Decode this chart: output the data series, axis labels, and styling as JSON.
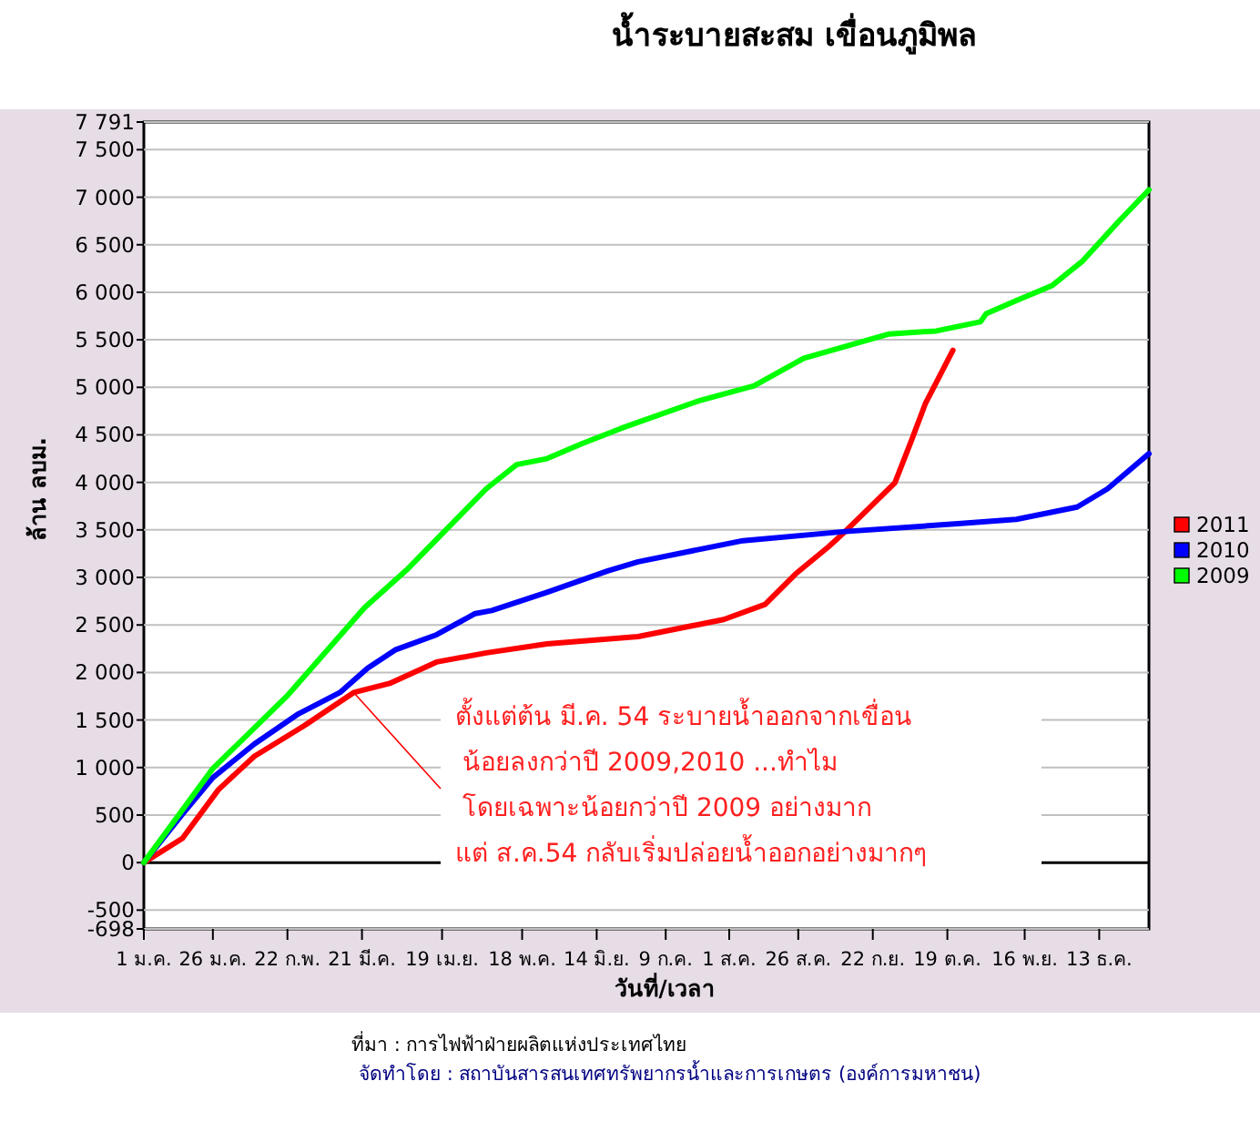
{
  "chart_data": {
    "type": "line",
    "title": "น้ำระบายสะสม เขื่อนภูมิพล",
    "xlabel": "วันที่/เวลา",
    "ylabel": "ล้าน ลบม.",
    "xlim": [
      "--01-01",
      "--12-31"
    ],
    "xticks": [
      {
        "value": "--01-01",
        "label": "1 ม.ค."
      },
      {
        "value": "--01-26",
        "label": "26 ม.ค."
      },
      {
        "value": "--02-22",
        "label": "22 ก.พ."
      },
      {
        "value": "--03-21",
        "label": "21 มี.ค."
      },
      {
        "value": "--04-19",
        "label": "19 เม.ย."
      },
      {
        "value": "--05-18",
        "label": "18 พ.ค."
      },
      {
        "value": "--06-14",
        "label": "14 มิ.ย."
      },
      {
        "value": "--07-09",
        "label": "9 ก.ค."
      },
      {
        "value": "--08-01",
        "label": "1 ส.ค."
      },
      {
        "value": "--08-26",
        "label": "26 ส.ค."
      },
      {
        "value": "--09-22",
        "label": "22 ก.ย."
      },
      {
        "value": "--10-19",
        "label": "19 ต.ค."
      },
      {
        "value": "--11-16",
        "label": "16 พ.ย."
      },
      {
        "value": "--12-13",
        "label": "13 ธ.ค."
      }
    ],
    "ylim": [
      -698,
      7791
    ],
    "yticks": [
      {
        "value": -698,
        "label": "-698"
      },
      -500,
      0,
      500,
      {
        "value": 1000,
        "label": "1 000"
      },
      {
        "value": 1500,
        "label": "1 500"
      },
      {
        "value": 2000,
        "label": "2 000"
      },
      {
        "value": 2500,
        "label": "2 500"
      },
      {
        "value": 3000,
        "label": "3 000"
      },
      {
        "value": 3500,
        "label": "3 500"
      },
      {
        "value": 4000,
        "label": "4 000"
      },
      {
        "value": 4500,
        "label": "4 500"
      },
      {
        "value": 5000,
        "label": "5 000"
      },
      {
        "value": 5500,
        "label": "5 500"
      },
      {
        "value": 6000,
        "label": "6 000"
      },
      {
        "value": 6500,
        "label": "6 500"
      },
      {
        "value": 7000,
        "label": "7 000"
      },
      {
        "value": 7500,
        "label": "7 500"
      },
      {
        "value": 7791,
        "label": "7 791"
      }
    ],
    "grid": "y",
    "legend": "right",
    "marker": "none",
    "line_style": "solid",
    "ref_lines": [
      {
        "axis": "y",
        "value": 0,
        "color": "#000000"
      }
    ],
    "series": [
      {
        "name": "2011",
        "color": "#ff0000",
        "x": [
          "--01-01",
          "--01-15",
          "--01-28",
          "--02-10",
          "--02-28",
          "--03-18",
          "--03-31",
          "--04-17",
          "--05-05",
          "--05-27",
          "--06-29",
          "--07-30",
          "--08-14",
          "--08-25",
          "--09-06",
          "--09-12",
          "--09-30",
          "--10-06",
          "--10-11",
          "--10-21"
        ],
        "values": [
          0,
          255,
          767,
          1118,
          1438,
          1789,
          1885,
          2110,
          2206,
          2301,
          2378,
          2557,
          2716,
          3036,
          3324,
          3483,
          3995,
          4442,
          4826,
          5389
        ]
      },
      {
        "name": "2010",
        "color": "#0000ff",
        "x": [
          "--01-01",
          "--01-15",
          "--01-26",
          "--02-10",
          "--02-26",
          "--03-13",
          "--03-23",
          "--04-02",
          "--04-17",
          "--05-01",
          "--05-07",
          "--05-27",
          "--06-18",
          "--06-29",
          "--08-06",
          "--09-12",
          "--10-24",
          "--11-13",
          "--12-05",
          "--12-16",
          "--12-31"
        ],
        "values": [
          0,
          510,
          894,
          1247,
          1565,
          1789,
          2045,
          2237,
          2397,
          2620,
          2652,
          2844,
          3069,
          3165,
          3387,
          3483,
          3567,
          3611,
          3740,
          3932,
          4302
        ]
      },
      {
        "name": "2009",
        "color": "#00ff00",
        "x": [
          "--01-01",
          "--01-26",
          "--02-22",
          "--03-22",
          "--04-06",
          "--04-22",
          "--05-05",
          "--05-16",
          "--05-27",
          "--06-09",
          "--06-23",
          "--07-21",
          "--08-10",
          "--08-28",
          "--09-28",
          "--10-15",
          "--10-31",
          "--11-02",
          "--11-13",
          "--11-26",
          "--12-07",
          "--12-20",
          "--12-31"
        ],
        "values": [
          0,
          990,
          1757,
          2685,
          3074,
          3548,
          3932,
          4187,
          4250,
          4411,
          4570,
          4858,
          5017,
          5305,
          5562,
          5593,
          5689,
          5773,
          5913,
          6072,
          6329,
          6744,
          7077
        ]
      }
    ],
    "annotations": [
      {
        "text": "ตั้งแต่ต้น มี.ค. 54 ระบายน้ำออกจากเขื่อน\nน้อยลงกว่าปี 2009,2010 ...ทำไม\nโดยเฉพาะน้อยกว่าปี 2009 อย่างมาก\nแต่ ส.ค.54 กลับเริ่มปล่อยน้ำออกอย่างมากๆ",
        "x": "--03-18",
        "y": 1789
      },
      "ที่มา : การไฟฟ้าฝ่ายผลิตแห่งประเทศไทย",
      "จัดทำโดย : สถาบันสารสนเทศทรัพยากรน้ำและการเกษตร (องค์การมหาชน)"
    ]
  }
}
